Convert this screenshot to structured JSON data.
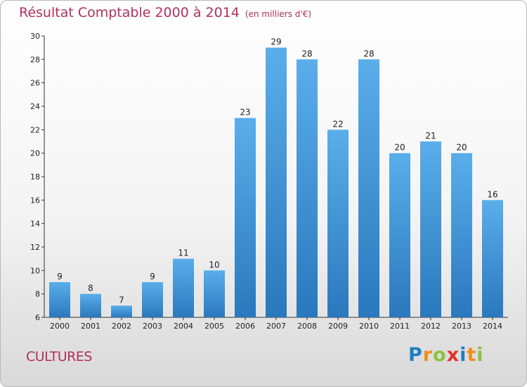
{
  "chart_data": {
    "type": "bar",
    "title": "Résultat Comptable 2000 à 2014",
    "subtitle": "(en milliers d'€)",
    "categories": [
      "2000",
      "2001",
      "2002",
      "2003",
      "2004",
      "2005",
      "2006",
      "2007",
      "2008",
      "2009",
      "2010",
      "2011",
      "2012",
      "2013",
      "2014"
    ],
    "values": [
      9,
      8,
      7,
      9,
      11,
      10,
      23,
      29,
      28,
      22,
      28,
      20,
      21,
      20,
      16
    ],
    "ylim": [
      6,
      30
    ],
    "yticks": [
      6,
      8,
      10,
      12,
      14,
      16,
      18,
      20,
      22,
      24,
      26,
      28,
      30
    ],
    "xlabel": "",
    "ylabel": "",
    "grid": false,
    "bar_color": "#4a9fe0"
  },
  "footer": {
    "commune": "CULTURES",
    "logo_letters": [
      "P",
      "r",
      "o",
      "x",
      "i",
      "t",
      "i"
    ],
    "logo_colors": [
      "#1f7ec2",
      "#f28c1a",
      "#8ac43f",
      "#e6312c",
      "#1f7ec2",
      "#f28c1a",
      "#8ac43f"
    ]
  }
}
